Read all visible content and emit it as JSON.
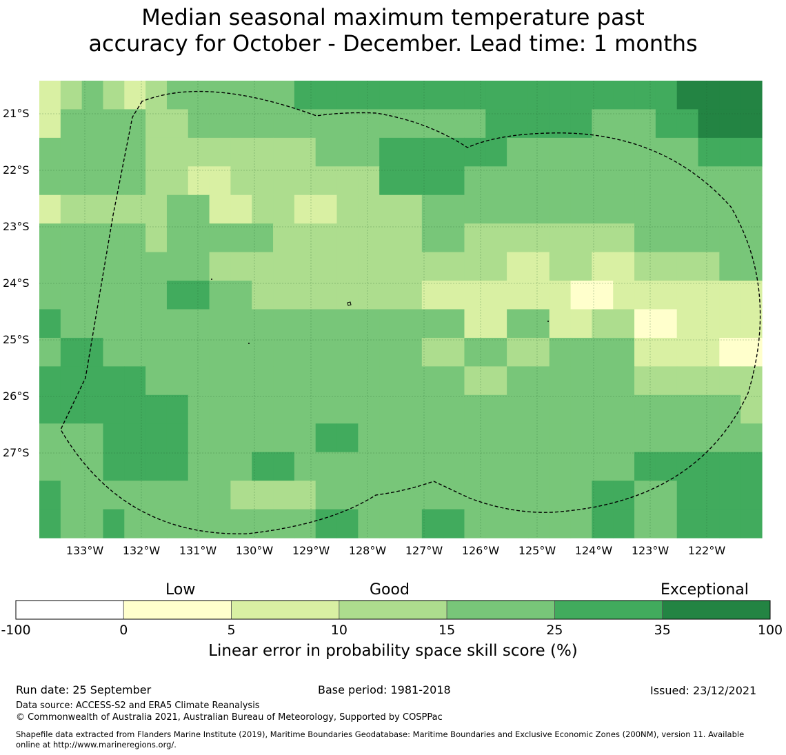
{
  "title": {
    "line1": "Median seasonal maximum temperature past",
    "line2": "accuracy for October - December. Lead time: 1 months"
  },
  "map": {
    "lat_labels": [
      "21°S",
      "22°S",
      "23°S",
      "24°S",
      "25°S",
      "26°S",
      "27°S"
    ],
    "lon_labels": [
      "133°W",
      "132°W",
      "131°W",
      "130°W",
      "129°W",
      "128°W",
      "127°W",
      "126°W",
      "125°W",
      "124°W",
      "123°W",
      "122°W"
    ],
    "grid_rows": [
      [
        1,
        2,
        3,
        2,
        1,
        2,
        3,
        3,
        3,
        3,
        3,
        3,
        4,
        4,
        4,
        4,
        4,
        4,
        4,
        4,
        4,
        4,
        4,
        4,
        4,
        4,
        4,
        4,
        4,
        4,
        5,
        5,
        5,
        5
      ],
      [
        1,
        3,
        3,
        3,
        3,
        2,
        2,
        3,
        3,
        3,
        3,
        3,
        3,
        3,
        3,
        3,
        3,
        3,
        3,
        3,
        3,
        4,
        4,
        4,
        4,
        4,
        3,
        3,
        3,
        4,
        4,
        5,
        5,
        5
      ],
      [
        3,
        3,
        3,
        3,
        3,
        2,
        2,
        2,
        2,
        2,
        2,
        2,
        2,
        3,
        3,
        3,
        4,
        4,
        4,
        4,
        4,
        4,
        3,
        3,
        3,
        3,
        3,
        3,
        3,
        3,
        3,
        4,
        4,
        4
      ],
      [
        3,
        3,
        3,
        3,
        3,
        2,
        2,
        1,
        1,
        2,
        2,
        2,
        2,
        2,
        2,
        2,
        4,
        4,
        4,
        4,
        3,
        3,
        3,
        3,
        3,
        3,
        3,
        3,
        3,
        3,
        3,
        3,
        3,
        3
      ],
      [
        1,
        2,
        2,
        2,
        2,
        2,
        3,
        3,
        1,
        1,
        2,
        2,
        1,
        1,
        2,
        2,
        2,
        2,
        3,
        3,
        3,
        3,
        3,
        3,
        3,
        3,
        3,
        3,
        3,
        3,
        3,
        3,
        3,
        3
      ],
      [
        3,
        3,
        3,
        3,
        3,
        2,
        3,
        3,
        3,
        3,
        3,
        2,
        2,
        2,
        2,
        2,
        2,
        2,
        3,
        3,
        2,
        2,
        2,
        2,
        2,
        2,
        2,
        2,
        3,
        3,
        3,
        3,
        3,
        3
      ],
      [
        3,
        3,
        3,
        3,
        3,
        3,
        3,
        3,
        2,
        2,
        2,
        2,
        2,
        2,
        2,
        2,
        2,
        2,
        2,
        2,
        2,
        2,
        1,
        1,
        2,
        2,
        1,
        1,
        2,
        2,
        2,
        2,
        3,
        3
      ],
      [
        3,
        3,
        3,
        3,
        3,
        3,
        4,
        4,
        3,
        3,
        2,
        2,
        2,
        2,
        2,
        2,
        2,
        2,
        1,
        1,
        1,
        1,
        1,
        1,
        1,
        0,
        0,
        1,
        1,
        1,
        1,
        1,
        1,
        1
      ],
      [
        4,
        3,
        3,
        3,
        3,
        3,
        3,
        3,
        3,
        3,
        3,
        3,
        3,
        3,
        3,
        3,
        3,
        3,
        3,
        3,
        1,
        1,
        3,
        3,
        1,
        1,
        2,
        2,
        0,
        0,
        1,
        1,
        1,
        1
      ],
      [
        3,
        4,
        4,
        3,
        3,
        3,
        3,
        3,
        3,
        3,
        3,
        3,
        3,
        3,
        3,
        3,
        3,
        3,
        2,
        2,
        3,
        3,
        2,
        2,
        3,
        3,
        3,
        3,
        1,
        1,
        1,
        1,
        0,
        0
      ],
      [
        4,
        4,
        4,
        4,
        4,
        3,
        3,
        3,
        3,
        3,
        3,
        3,
        3,
        3,
        3,
        3,
        3,
        3,
        3,
        3,
        2,
        2,
        3,
        3,
        3,
        3,
        3,
        3,
        2,
        2,
        2,
        2,
        2,
        2
      ],
      [
        4,
        4,
        4,
        4,
        4,
        4,
        4,
        3,
        3,
        3,
        3,
        3,
        3,
        3,
        3,
        3,
        3,
        3,
        3,
        3,
        3,
        3,
        3,
        3,
        3,
        3,
        3,
        3,
        3,
        3,
        3,
        3,
        3,
        2
      ],
      [
        3,
        3,
        3,
        4,
        4,
        4,
        4,
        3,
        3,
        3,
        3,
        3,
        3,
        4,
        4,
        3,
        3,
        3,
        3,
        3,
        3,
        3,
        3,
        3,
        3,
        3,
        3,
        3,
        3,
        3,
        3,
        3,
        3,
        3
      ],
      [
        3,
        3,
        3,
        4,
        4,
        4,
        4,
        3,
        3,
        3,
        4,
        4,
        3,
        3,
        3,
        3,
        3,
        3,
        3,
        3,
        3,
        3,
        3,
        3,
        3,
        3,
        3,
        3,
        4,
        4,
        4,
        4,
        4,
        4
      ],
      [
        4,
        3,
        3,
        3,
        3,
        3,
        3,
        3,
        3,
        2,
        2,
        2,
        2,
        3,
        3,
        3,
        3,
        3,
        3,
        3,
        3,
        3,
        3,
        3,
        3,
        3,
        4,
        4,
        3,
        3,
        4,
        4,
        4,
        4
      ],
      [
        4,
        3,
        3,
        4,
        3,
        3,
        3,
        3,
        3,
        3,
        3,
        3,
        3,
        4,
        4,
        3,
        3,
        3,
        4,
        4,
        3,
        3,
        3,
        3,
        3,
        3,
        4,
        4,
        3,
        3,
        4,
        4,
        4,
        4
      ]
    ]
  },
  "colorbar": {
    "categories": [
      "Low",
      "Good",
      "Exceptional"
    ],
    "ticks": [
      "-100",
      "0",
      "5",
      "10",
      "15",
      "25",
      "35",
      "100"
    ],
    "colors": [
      "#ffffff",
      "#ffffcc",
      "#d9f0a3",
      "#addd8e",
      "#78c679",
      "#41ab5d",
      "#238443"
    ],
    "title": "Linear error in probability space skill score (%)"
  },
  "footer": {
    "run_date": "Run date: 25 September",
    "base_period": "Base period: 1981-2018",
    "issued": "Issued: 23/12/2021",
    "data_source": "Data source: ACCESS-S2 and ERA5 Climate Reanalysis",
    "copyright": "© Commonwealth of Australia 2021, Australian Bureau of Meteorology, Supported by COSPPac",
    "shapefile_line1": "Shapefile data extracted from Flanders Marine Institute (2019), Maritime Boundaries Geodatabase: Maritime Boundaries and Exclusive Economic Zones (200NM), version 11. Available",
    "shapefile_line2": "online at http://www.marineregions.org/."
  }
}
